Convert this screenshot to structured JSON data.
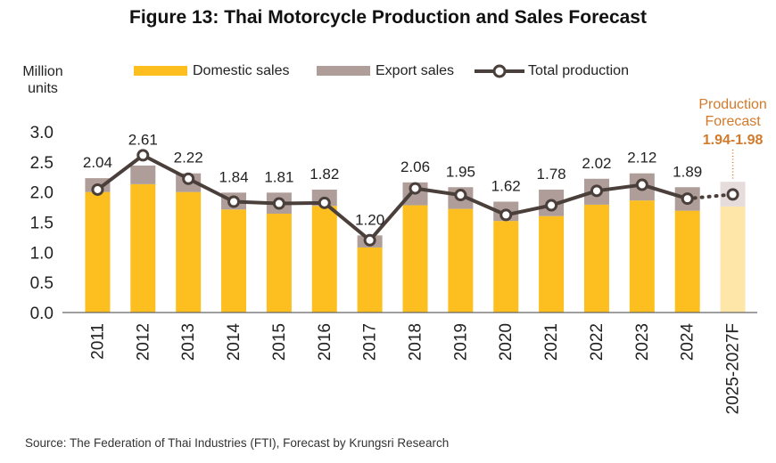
{
  "title": "Figure 13: Thai Motorcycle Production and Sales Forecast",
  "unit_label_line1": "Million",
  "unit_label_line2": "units",
  "legend": {
    "domestic": "Domestic sales",
    "export": "Export sales",
    "total": "Total production"
  },
  "forecast_note_line1": "Production",
  "forecast_note_line2": "Forecast",
  "forecast_range": "1.94-1.98",
  "source": "Source: The Federation of Thai Industries (FTI), Forecast by Krungsri Research",
  "colors": {
    "domestic": "#FDBF20",
    "export": "#AE9D98",
    "total_line": "#4A3F3B",
    "forecast_domestic": "#FDE6A8",
    "forecast_export": "#E6DCDB",
    "forecast_text": "#D27A2C"
  },
  "chart_data": {
    "type": "bar",
    "stacked": true,
    "categories": [
      "2011",
      "2012",
      "2013",
      "2014",
      "2015",
      "2016",
      "2017",
      "2018",
      "2019",
      "2020",
      "2021",
      "2022",
      "2023",
      "2024",
      "2025-2027F"
    ],
    "series": [
      {
        "name": "Domestic sales",
        "values": [
          2.0,
          2.13,
          2.0,
          1.71,
          1.64,
          1.77,
          1.08,
          1.78,
          1.72,
          1.52,
          1.6,
          1.79,
          1.86,
          1.69,
          1.76
        ]
      },
      {
        "name": "Export sales",
        "values": [
          0.23,
          0.31,
          0.31,
          0.28,
          0.35,
          0.27,
          0.2,
          0.38,
          0.36,
          0.32,
          0.44,
          0.43,
          0.45,
          0.39,
          0.41
        ]
      }
    ],
    "line_series": {
      "name": "Total production",
      "values": [
        2.04,
        2.61,
        2.22,
        1.84,
        1.81,
        1.82,
        1.2,
        2.06,
        1.95,
        1.62,
        1.78,
        2.02,
        2.12,
        1.89,
        1.96
      ],
      "labels": [
        "2.04",
        "2.61",
        "2.22",
        "1.84",
        "1.81",
        "1.82",
        "1.20",
        "2.06",
        "1.95",
        "1.62",
        "1.78",
        "2.02",
        "2.12",
        "1.89",
        ""
      ]
    },
    "yticks": [
      "0.0",
      "0.5",
      "1.0",
      "1.5",
      "2.0",
      "2.5",
      "3.0"
    ],
    "ylim": [
      0,
      3.0
    ],
    "grid": false,
    "legend_position": "top"
  }
}
